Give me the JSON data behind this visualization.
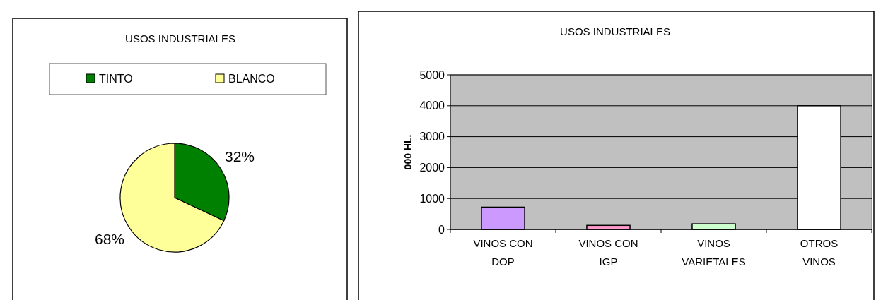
{
  "chart_data": [
    {
      "type": "pie",
      "title": "USOS INDUSTRIALES",
      "categories": [
        "TINTO",
        "BLANCO"
      ],
      "values": [
        32,
        68
      ],
      "colors": [
        "#008000",
        "#ffff99"
      ],
      "value_labels": [
        "32%",
        "68%"
      ],
      "legend": "top"
    },
    {
      "type": "bar",
      "title": "USOS INDUSTRIALES",
      "ylabel": "000 HL.",
      "categories": [
        "VINOS CON DOP",
        "VINOS CON IGP",
        "VINOS VARIETALES",
        "OTROS VINOS"
      ],
      "values": [
        720,
        130,
        180,
        4000
      ],
      "colors": [
        "#cc99ff",
        "#ff99cc",
        "#ccffcc",
        "#ffffff"
      ],
      "ylim": [
        0,
        5000
      ],
      "yticks": [
        0,
        1000,
        2000,
        3000,
        4000,
        5000
      ],
      "grid": "y"
    }
  ]
}
